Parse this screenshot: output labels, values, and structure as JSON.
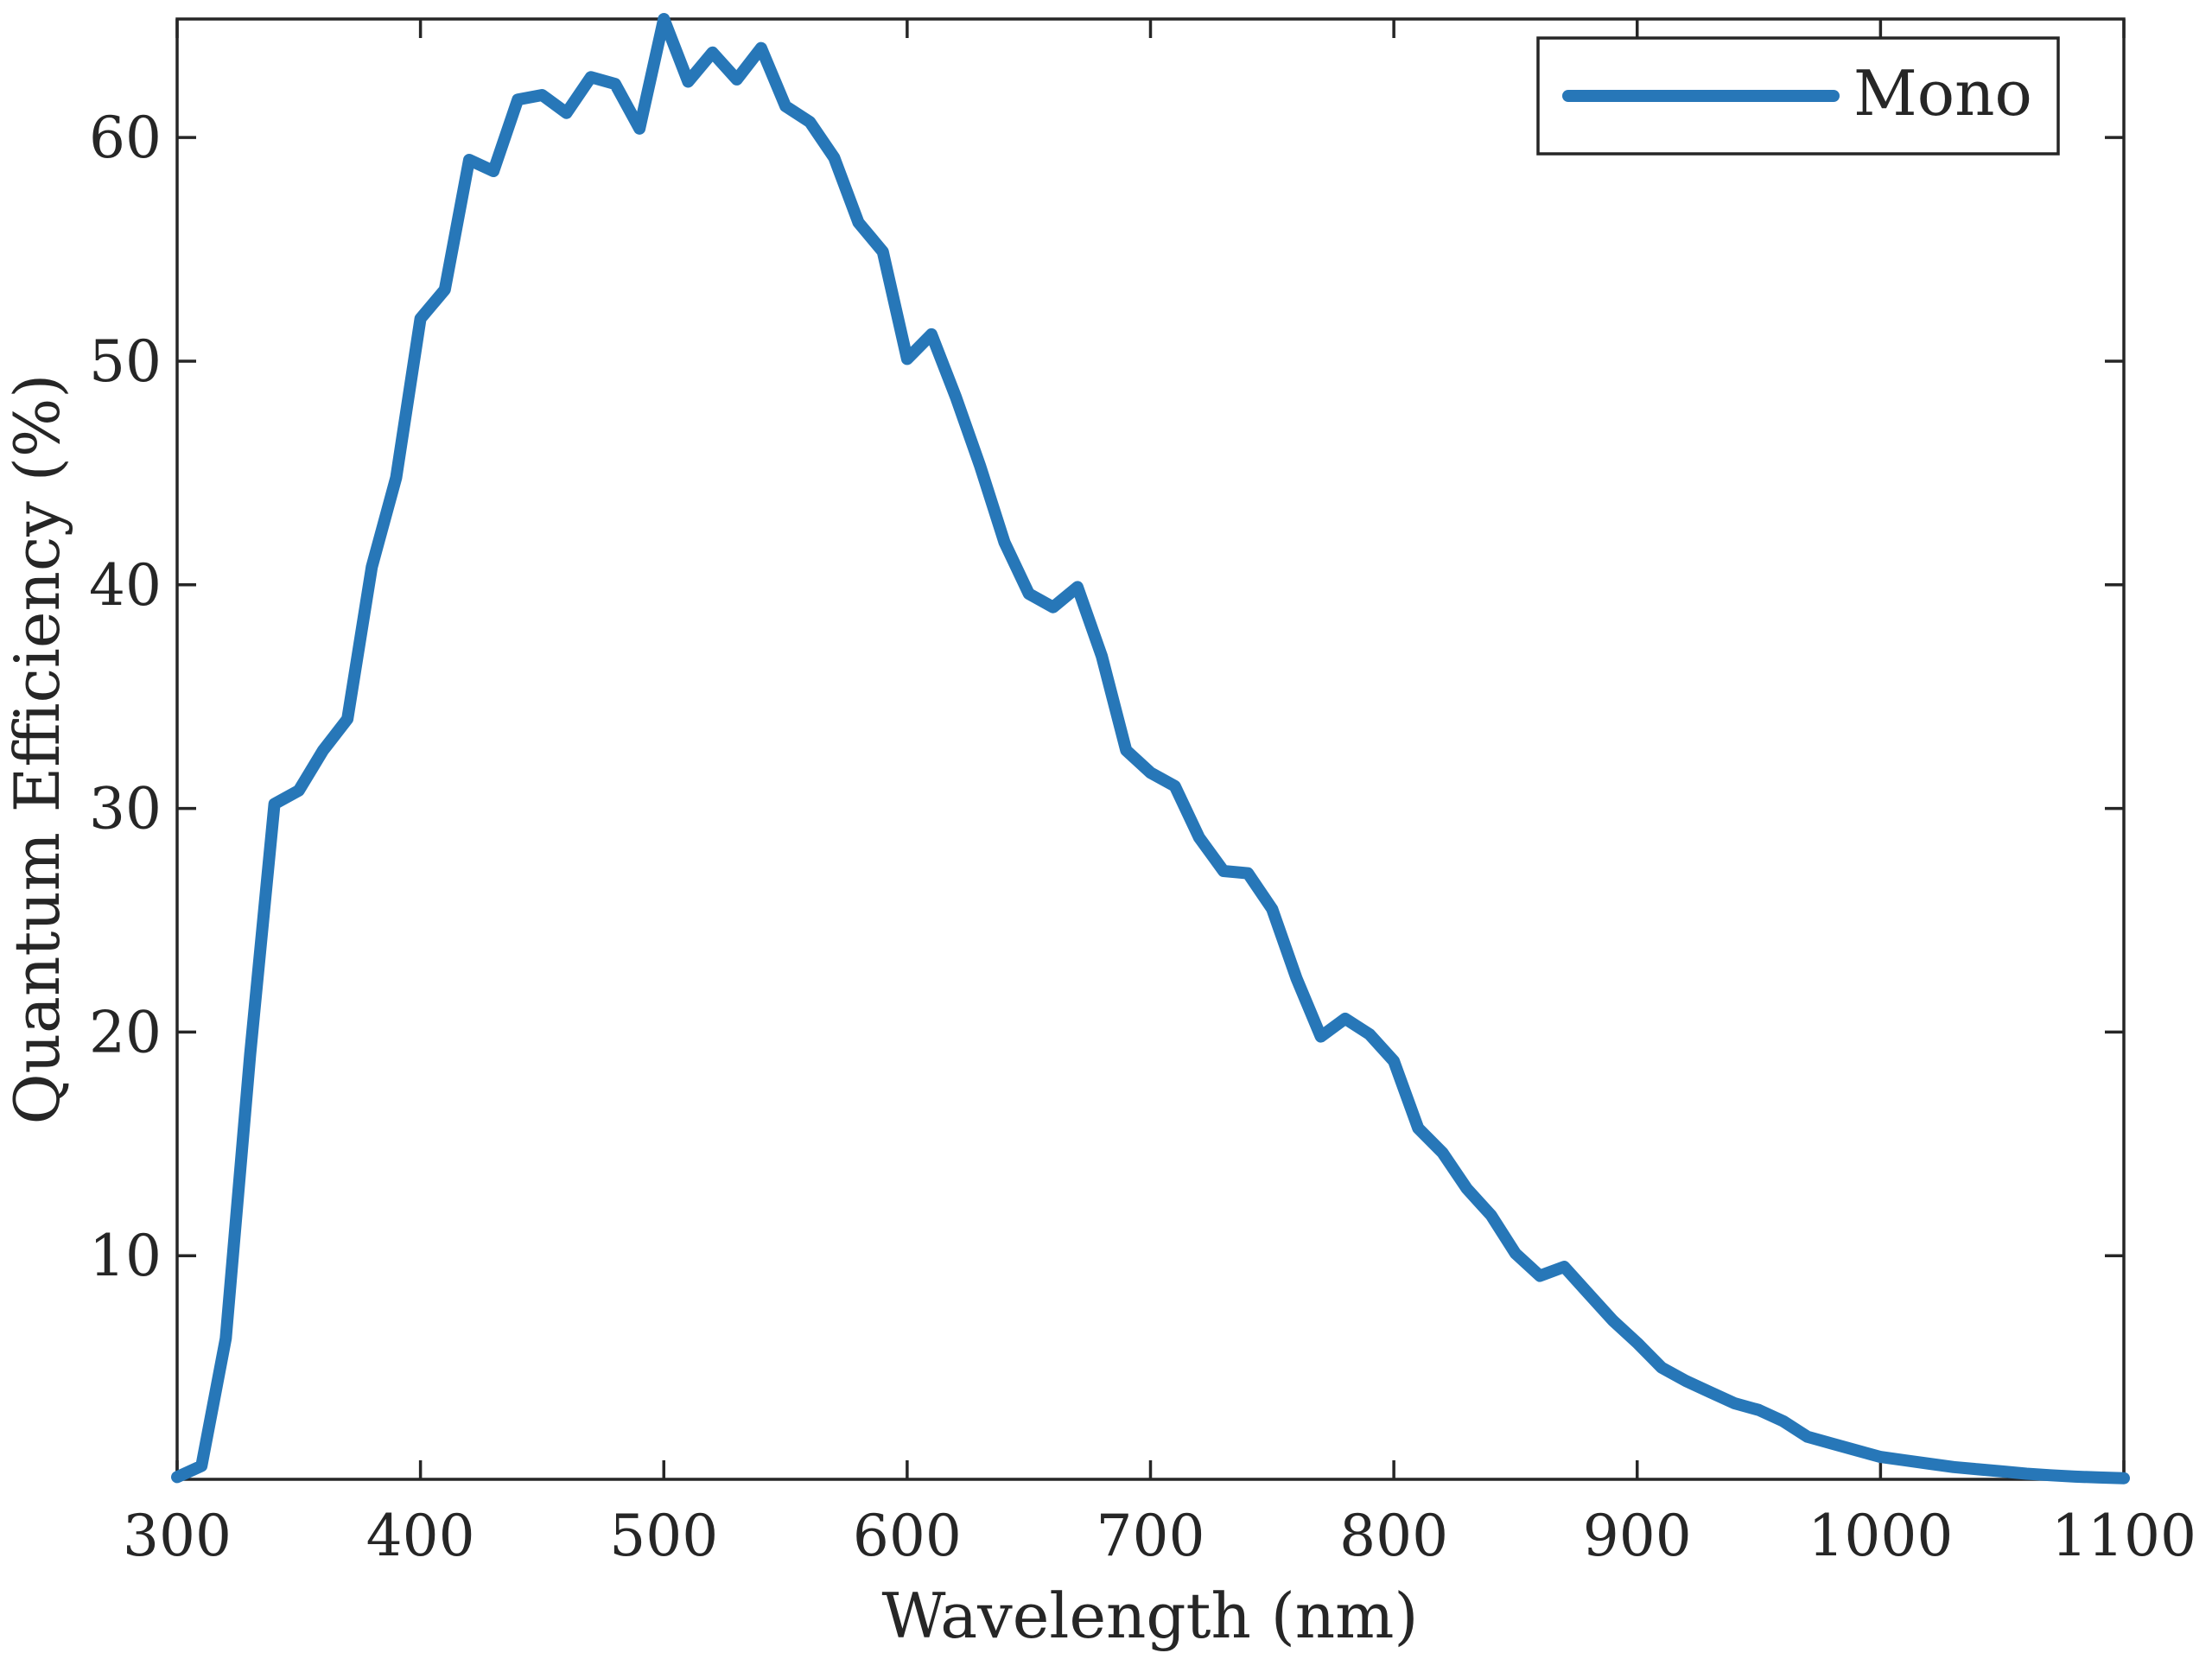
{
  "chart_data": {
    "type": "line",
    "xlabel": "Wavelength (nm)",
    "ylabel": "Quantum Efficiency (%)",
    "xlim": [
      300,
      1100
    ],
    "ylim": [
      0,
      65.3
    ],
    "x_ticks": [
      300,
      400,
      500,
      600,
      700,
      800,
      900,
      1000,
      1100
    ],
    "y_ticks": [
      10,
      20,
      30,
      40,
      50,
      60
    ],
    "grid": false,
    "legend_position": "top-right",
    "series": [
      {
        "name": "Mono",
        "color": "#2777b8",
        "x": [
          300,
          310,
          320,
          330,
          340,
          350,
          360,
          370,
          380,
          390,
          400,
          410,
          420,
          430,
          440,
          450,
          460,
          470,
          480,
          490,
          500,
          510,
          520,
          530,
          540,
          550,
          560,
          570,
          580,
          590,
          600,
          610,
          620,
          630,
          640,
          650,
          660,
          670,
          680,
          690,
          700,
          710,
          720,
          730,
          740,
          750,
          760,
          770,
          780,
          790,
          800,
          810,
          820,
          830,
          840,
          850,
          860,
          870,
          880,
          890,
          900,
          910,
          920,
          930,
          940,
          950,
          960,
          970,
          980,
          990,
          1000,
          1010,
          1020,
          1030,
          1040,
          1050,
          1060,
          1070,
          1080,
          1090,
          1100
        ],
        "y": [
          0.1,
          0.6,
          6.3,
          19.0,
          30.2,
          30.8,
          32.6,
          34.0,
          40.8,
          44.8,
          51.9,
          53.2,
          59.0,
          58.5,
          61.7,
          61.9,
          61.1,
          62.7,
          62.4,
          60.4,
          65.3,
          62.5,
          63.8,
          62.6,
          64.0,
          61.4,
          60.7,
          59.1,
          56.2,
          54.9,
          50.1,
          51.2,
          48.4,
          45.3,
          41.9,
          39.6,
          39.0,
          39.9,
          36.8,
          32.6,
          31.6,
          31.0,
          28.7,
          27.2,
          27.1,
          25.5,
          22.4,
          19.8,
          20.6,
          19.9,
          18.7,
          15.7,
          14.6,
          13.0,
          11.8,
          10.1,
          9.1,
          9.5,
          8.3,
          7.1,
          6.1,
          5.0,
          4.4,
          3.9,
          3.4,
          3.1,
          2.6,
          1.9,
          1.6,
          1.3,
          1.0,
          0.85,
          0.7,
          0.55,
          0.45,
          0.35,
          0.25,
          0.18,
          0.12,
          0.08,
          0.05
        ]
      }
    ]
  }
}
